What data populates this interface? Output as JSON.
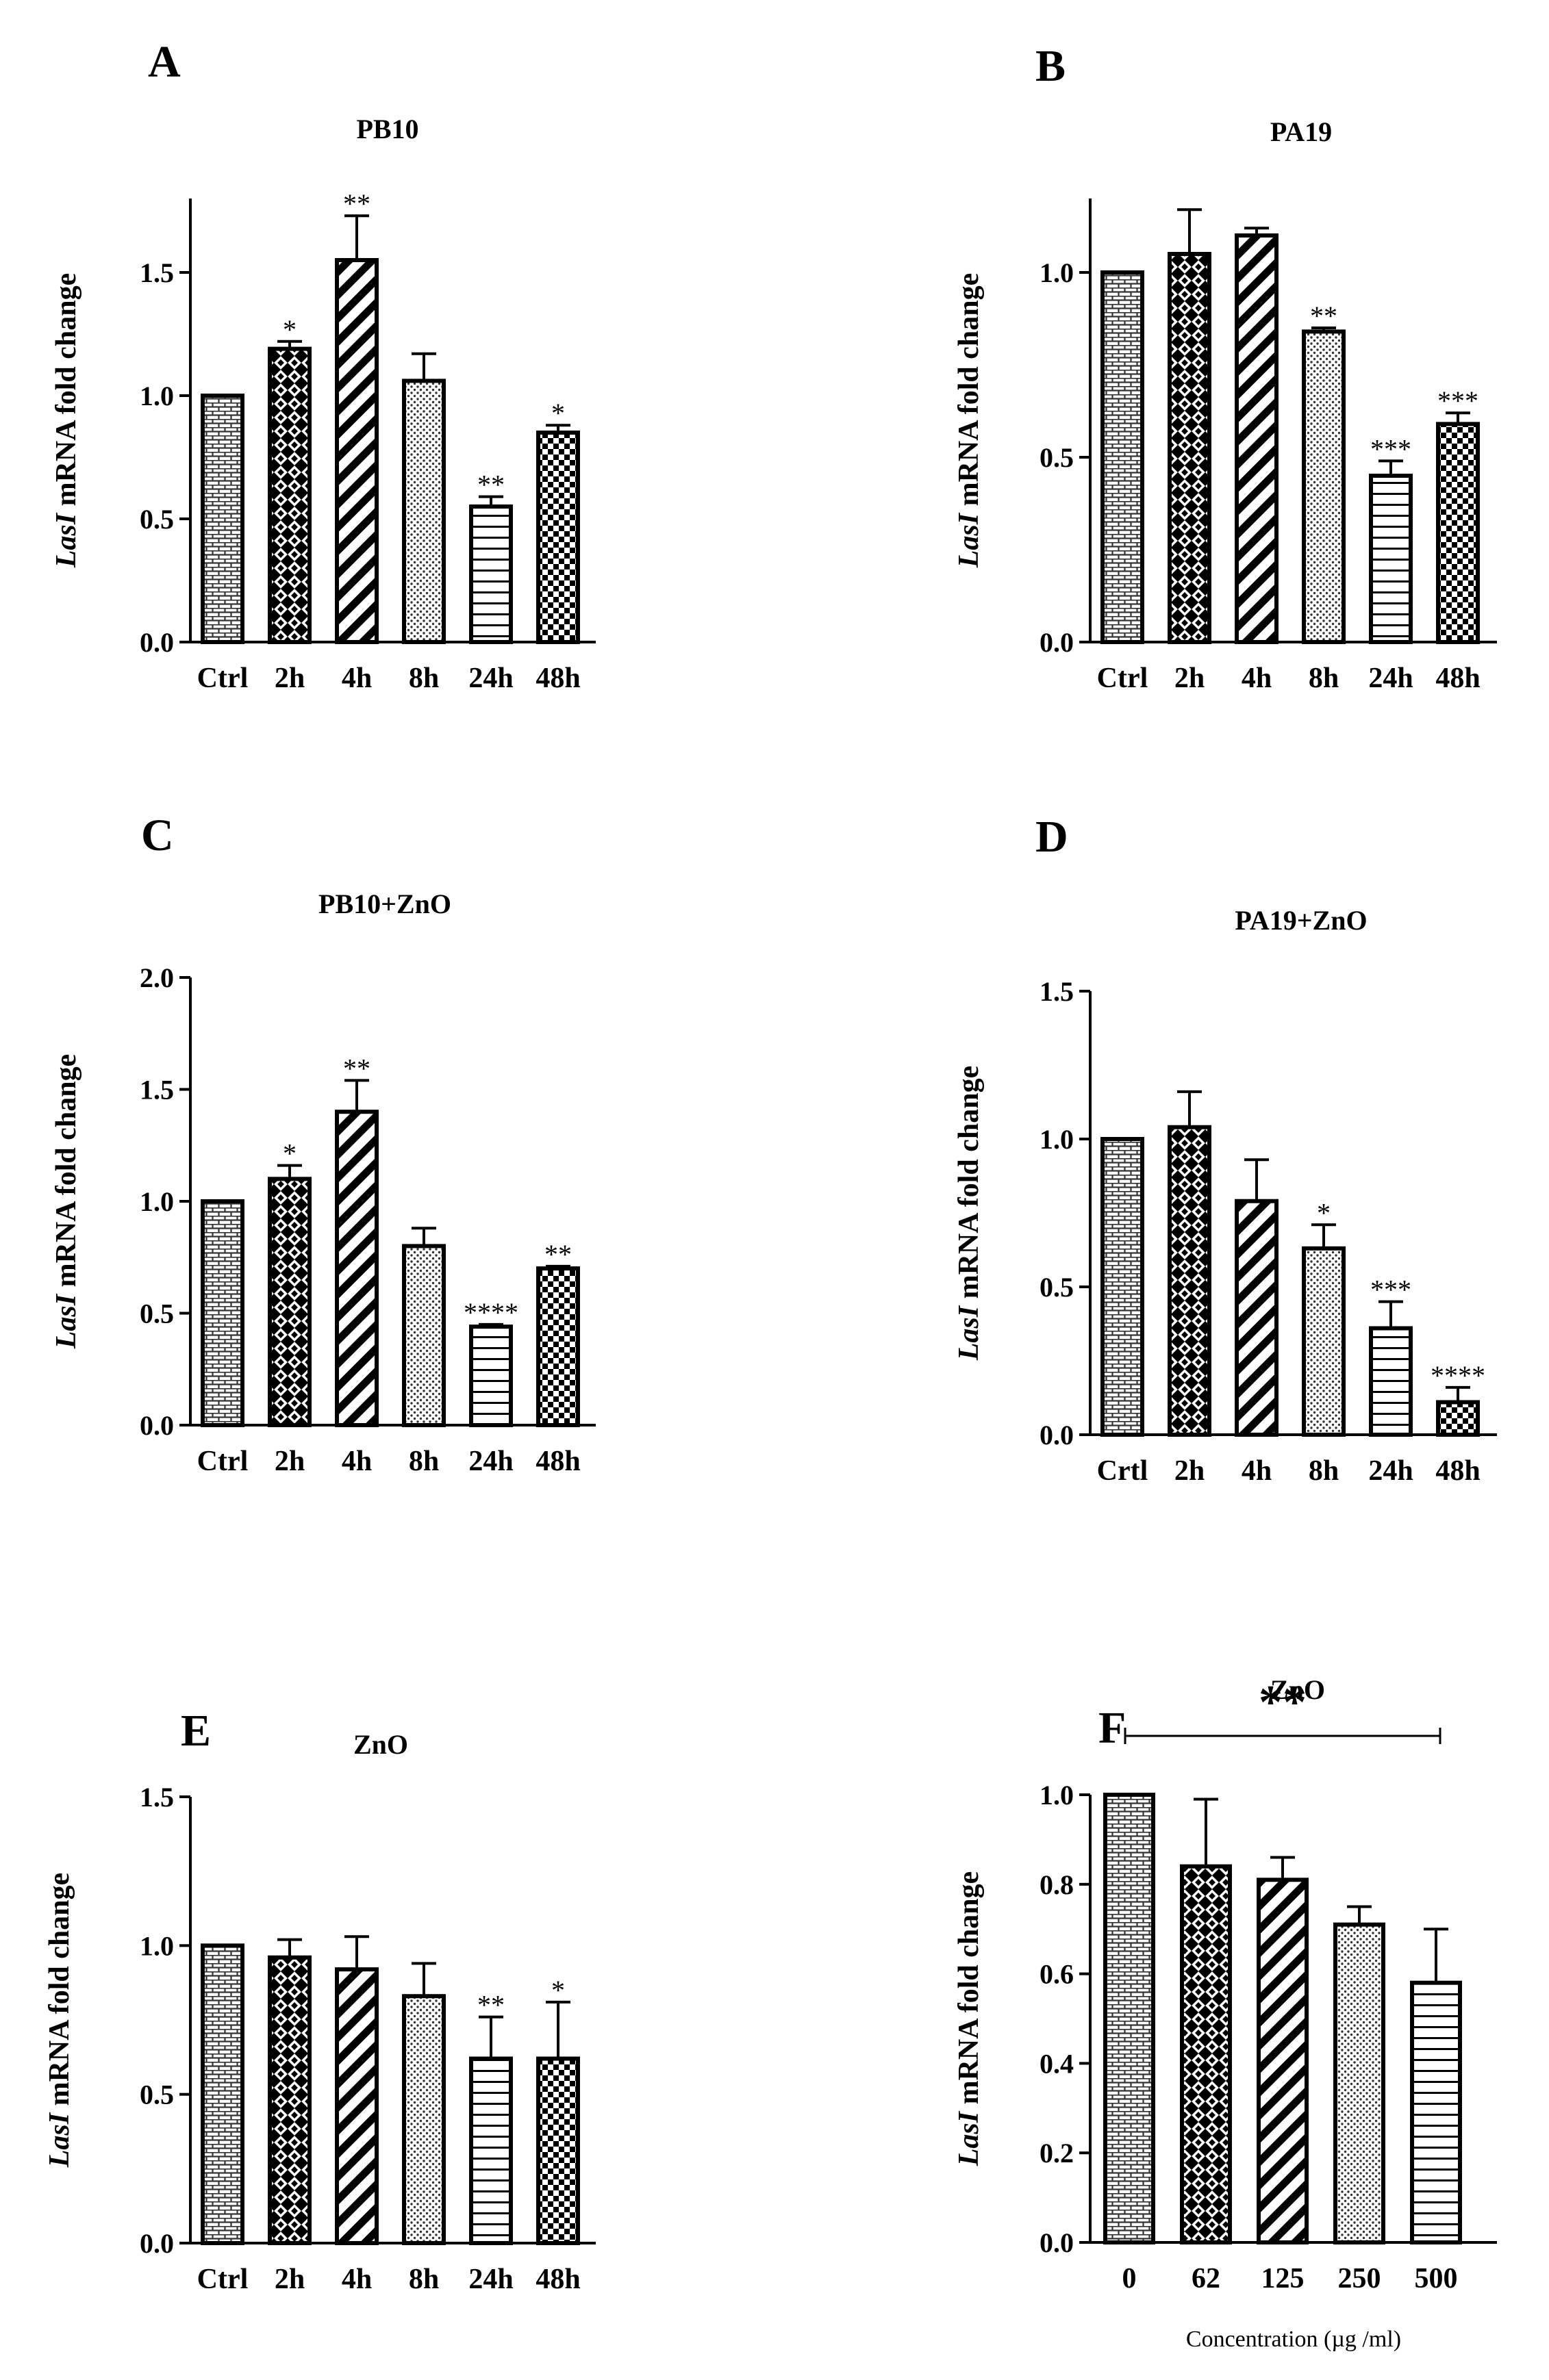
{
  "chart_data": [
    {
      "panel": "A",
      "type": "bar",
      "title": "PB10",
      "ylabel_italic": "LasI",
      "ylabel_rest": " mRNA fold change",
      "xlabel": "",
      "ylim": [
        0,
        1.8
      ],
      "yticks": [
        "0.0",
        "0.5",
        "1.0",
        "1.5"
      ],
      "categories": [
        "Ctrl",
        "2h",
        "4h",
        "8h",
        "24h",
        "48h"
      ],
      "values": [
        1.0,
        1.19,
        1.55,
        1.06,
        0.55,
        0.85
      ],
      "errors": [
        0,
        0.03,
        0.18,
        0.11,
        0.04,
        0.03
      ],
      "significance": [
        "",
        "*",
        "**",
        "",
        "**",
        "*"
      ]
    },
    {
      "panel": "B",
      "type": "bar",
      "title": "PA19",
      "ylabel_italic": "LasI",
      "ylabel_rest": " mRNA fold change",
      "xlabel": "",
      "ylim": [
        0,
        1.2
      ],
      "yticks": [
        "0.0",
        "0.5",
        "1.0"
      ],
      "categories": [
        "Ctrl",
        "2h",
        "4h",
        "8h",
        "24h",
        "48h"
      ],
      "values": [
        1.0,
        1.05,
        1.1,
        0.84,
        0.45,
        0.59
      ],
      "errors": [
        0,
        0.12,
        0.02,
        0.01,
        0.04,
        0.03
      ],
      "significance": [
        "",
        "",
        "",
        "**",
        "***",
        "***"
      ]
    },
    {
      "panel": "C",
      "type": "bar",
      "title": "PB10+ZnO",
      "ylabel_italic": "LasI",
      "ylabel_rest": " mRNA fold change",
      "xlabel": "",
      "ylim": [
        0,
        2.0
      ],
      "yticks": [
        "0.0",
        "0.5",
        "1.0",
        "1.5",
        "2.0"
      ],
      "categories": [
        "Ctrl",
        "2h",
        "4h",
        "8h",
        "24h",
        "48h"
      ],
      "values": [
        1.0,
        1.1,
        1.4,
        0.8,
        0.44,
        0.7
      ],
      "errors": [
        0,
        0.06,
        0.14,
        0.08,
        0.01,
        0.01
      ],
      "significance": [
        "",
        "*",
        "**",
        "",
        "****",
        "**"
      ]
    },
    {
      "panel": "D",
      "type": "bar",
      "title": "PA19+ZnO",
      "ylabel_italic": "LasI",
      "ylabel_rest": " mRNA fold change",
      "xlabel": "",
      "ylim": [
        0,
        1.5
      ],
      "yticks": [
        "0.0",
        "0.5",
        "1.0",
        "1.5"
      ],
      "categories": [
        "Crtl",
        "2h",
        "4h",
        "8h",
        "24h",
        "48h"
      ],
      "values": [
        1.0,
        1.04,
        0.79,
        0.63,
        0.36,
        0.11
      ],
      "errors": [
        0,
        0.12,
        0.14,
        0.08,
        0.09,
        0.05
      ],
      "significance": [
        "",
        "",
        "",
        "*",
        "***",
        "****"
      ]
    },
    {
      "panel": "E",
      "type": "bar",
      "title": "ZnO",
      "ylabel_italic": "LasI",
      "ylabel_rest": " mRNA fold change",
      "xlabel": "",
      "ylim": [
        0,
        1.5
      ],
      "yticks": [
        "0.0",
        "0.5",
        "1.0",
        "1.5"
      ],
      "categories": [
        "Ctrl",
        "2h",
        "4h",
        "8h",
        "24h",
        "48h"
      ],
      "values": [
        1.0,
        0.96,
        0.92,
        0.83,
        0.62,
        0.62
      ],
      "errors": [
        0,
        0.06,
        0.11,
        0.11,
        0.14,
        0.19
      ],
      "significance": [
        "",
        "",
        "",
        "",
        "**",
        "*"
      ]
    },
    {
      "panel": "F",
      "type": "bar",
      "title": "ZnO",
      "ylabel_italic": "LasI",
      "ylabel_rest": " mRNA fold change",
      "xlabel": "Concentration (µg /ml)",
      "ylim": [
        0,
        1.0
      ],
      "yticks": [
        "0.0",
        "0.2",
        "0.4",
        "0.6",
        "0.8",
        "1.0"
      ],
      "categories": [
        "0",
        "62",
        "125",
        "250",
        "500"
      ],
      "values": [
        1.0,
        0.84,
        0.81,
        0.71,
        0.58
      ],
      "errors": [
        0,
        0.15,
        0.05,
        0.04,
        0.12
      ],
      "significance": [
        "",
        "",
        "",
        "",
        ""
      ],
      "bracket_label": "**"
    }
  ]
}
